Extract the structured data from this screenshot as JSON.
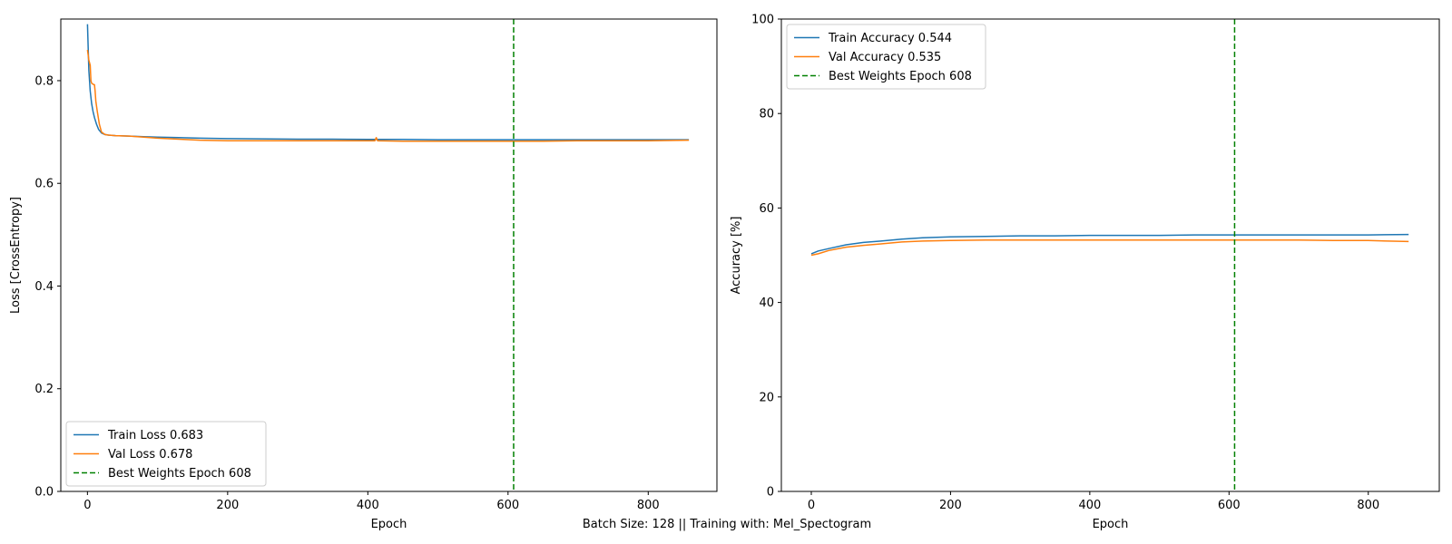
{
  "footer_text": "Batch Size: 128 || Training with: Mel_Spectogram",
  "colors": {
    "train": "#1f77b4",
    "val": "#ff7f0e",
    "best": "#008000"
  },
  "chart_data": [
    {
      "type": "line",
      "ylabel": "Loss [CrossEntropy]",
      "xlabel": "Epoch",
      "xlim": [
        -38,
        898
      ],
      "ylim": [
        0.0,
        0.92
      ],
      "xticks": [
        0,
        200,
        400,
        600,
        800
      ],
      "yticks": [
        0.0,
        0.2,
        0.4,
        0.6,
        0.8
      ],
      "ytick_labels": [
        "0.0",
        "0.2",
        "0.4",
        "0.6",
        "0.8"
      ],
      "legend_position": "lower-left",
      "grid": false,
      "best_epoch": 608,
      "best_label": "Best Weights Epoch 608",
      "series": [
        {
          "name": "Train Loss 0.683",
          "color": "#1f77b4",
          "x": [
            0,
            2,
            4,
            6,
            8,
            10,
            13,
            16,
            20,
            25,
            30,
            40,
            60,
            80,
            100,
            130,
            160,
            200,
            260,
            300,
            350,
            400,
            450,
            500,
            550,
            600,
            650,
            700,
            750,
            800,
            858
          ],
          "y": [
            0.91,
            0.82,
            0.78,
            0.755,
            0.74,
            0.728,
            0.715,
            0.705,
            0.698,
            0.695,
            0.694,
            0.693,
            0.692,
            0.691,
            0.69,
            0.689,
            0.688,
            0.687,
            0.6865,
            0.686,
            0.686,
            0.6855,
            0.6855,
            0.685,
            0.685,
            0.685,
            0.685,
            0.685,
            0.685,
            0.685,
            0.685
          ]
        },
        {
          "name": "Val Loss 0.678",
          "color": "#ff7f0e",
          "x": [
            0,
            2,
            4,
            5,
            6,
            8,
            10,
            11,
            12,
            14,
            17,
            20,
            25,
            30,
            40,
            60,
            80,
            100,
            130,
            160,
            200,
            260,
            300,
            350,
            410,
            412,
            414,
            450,
            500,
            550,
            600,
            650,
            700,
            750,
            800,
            858
          ],
          "y": [
            0.86,
            0.84,
            0.83,
            0.8,
            0.795,
            0.793,
            0.792,
            0.78,
            0.76,
            0.74,
            0.715,
            0.7,
            0.695,
            0.694,
            0.693,
            0.692,
            0.69,
            0.688,
            0.686,
            0.684,
            0.683,
            0.683,
            0.683,
            0.683,
            0.683,
            0.689,
            0.683,
            0.682,
            0.682,
            0.682,
            0.682,
            0.682,
            0.683,
            0.683,
            0.683,
            0.684
          ]
        }
      ]
    },
    {
      "type": "line",
      "ylabel": "Accuracy [%]",
      "xlabel": "Epoch",
      "xlim": [
        -43,
        902
      ],
      "ylim": [
        0,
        100
      ],
      "xticks": [
        0,
        200,
        400,
        600,
        800
      ],
      "yticks": [
        0,
        20,
        40,
        60,
        80,
        100
      ],
      "ytick_labels": [
        "0",
        "20",
        "40",
        "60",
        "80",
        "100"
      ],
      "legend_position": "upper-left",
      "grid": false,
      "best_epoch": 608,
      "best_label": "Best Weights Epoch 608",
      "series": [
        {
          "name": "Train Accuracy 0.544",
          "color": "#1f77b4",
          "x": [
            0,
            10,
            25,
            50,
            75,
            100,
            130,
            160,
            200,
            250,
            300,
            350,
            400,
            450,
            500,
            550,
            600,
            650,
            700,
            750,
            800,
            858
          ],
          "y": [
            50.3,
            50.9,
            51.4,
            52.2,
            52.7,
            53.0,
            53.4,
            53.7,
            53.9,
            54.0,
            54.1,
            54.1,
            54.2,
            54.2,
            54.2,
            54.3,
            54.3,
            54.3,
            54.3,
            54.3,
            54.3,
            54.4
          ]
        },
        {
          "name": "Val Accuracy 0.535",
          "color": "#ff7f0e",
          "x": [
            0,
            10,
            25,
            50,
            75,
            100,
            130,
            160,
            200,
            250,
            300,
            350,
            400,
            450,
            500,
            550,
            600,
            650,
            700,
            750,
            800,
            858
          ],
          "y": [
            50.0,
            50.3,
            51.0,
            51.7,
            52.1,
            52.4,
            52.8,
            53.0,
            53.1,
            53.2,
            53.2,
            53.2,
            53.2,
            53.2,
            53.2,
            53.2,
            53.2,
            53.2,
            53.2,
            53.1,
            53.1,
            52.9
          ]
        }
      ]
    }
  ]
}
